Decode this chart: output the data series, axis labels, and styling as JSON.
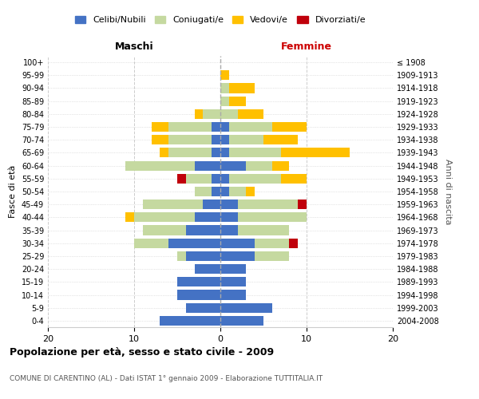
{
  "age_groups": [
    "0-4",
    "5-9",
    "10-14",
    "15-19",
    "20-24",
    "25-29",
    "30-34",
    "35-39",
    "40-44",
    "45-49",
    "50-54",
    "55-59",
    "60-64",
    "65-69",
    "70-74",
    "75-79",
    "80-84",
    "85-89",
    "90-94",
    "95-99",
    "100+"
  ],
  "birth_years": [
    "2004-2008",
    "1999-2003",
    "1994-1998",
    "1989-1993",
    "1984-1988",
    "1979-1983",
    "1974-1978",
    "1969-1973",
    "1964-1968",
    "1959-1963",
    "1954-1958",
    "1949-1953",
    "1944-1948",
    "1939-1943",
    "1934-1938",
    "1929-1933",
    "1924-1928",
    "1919-1923",
    "1914-1918",
    "1909-1913",
    "≤ 1908"
  ],
  "maschi": {
    "celibi": [
      7,
      4,
      5,
      5,
      3,
      4,
      6,
      4,
      3,
      2,
      1,
      1,
      3,
      1,
      1,
      1,
      0,
      0,
      0,
      0,
      0
    ],
    "coniugati": [
      0,
      0,
      0,
      0,
      0,
      1,
      4,
      5,
      7,
      7,
      2,
      3,
      8,
      5,
      5,
      5,
      2,
      0,
      0,
      0,
      0
    ],
    "vedovi": [
      0,
      0,
      0,
      0,
      0,
      0,
      0,
      0,
      1,
      0,
      0,
      0,
      0,
      1,
      2,
      2,
      1,
      0,
      0,
      0,
      0
    ],
    "divorziati": [
      0,
      0,
      0,
      0,
      0,
      0,
      0,
      0,
      0,
      0,
      0,
      1,
      0,
      0,
      0,
      0,
      0,
      0,
      0,
      0,
      0
    ]
  },
  "femmine": {
    "nubili": [
      5,
      6,
      3,
      3,
      3,
      4,
      4,
      2,
      2,
      2,
      1,
      1,
      3,
      1,
      1,
      1,
      0,
      0,
      0,
      0,
      0
    ],
    "coniugate": [
      0,
      0,
      0,
      0,
      0,
      4,
      4,
      6,
      8,
      7,
      2,
      6,
      3,
      6,
      4,
      5,
      2,
      1,
      1,
      0,
      0
    ],
    "vedove": [
      0,
      0,
      0,
      0,
      0,
      0,
      0,
      0,
      0,
      0,
      1,
      3,
      2,
      8,
      4,
      4,
      3,
      2,
      3,
      1,
      0
    ],
    "divorziate": [
      0,
      0,
      0,
      0,
      0,
      0,
      1,
      0,
      0,
      1,
      0,
      0,
      0,
      0,
      0,
      0,
      0,
      0,
      0,
      0,
      0
    ]
  },
  "colors": {
    "celibi": "#4472c4",
    "coniugati": "#c5d9a0",
    "vedovi": "#ffc000",
    "divorziati": "#c0000b"
  },
  "title": "Popolazione per età, sesso e stato civile - 2009",
  "subtitle": "COMUNE DI CARENTINO (AL) - Dati ISTAT 1° gennaio 2009 - Elaborazione TUTTITALIA.IT",
  "xlabel_left": "Maschi",
  "xlabel_right": "Femmine",
  "ylabel_left": "Fasce di età",
  "ylabel_right": "Anni di nascita",
  "xlim": 20,
  "background_color": "#ffffff",
  "grid_color": "#cccccc",
  "legend_labels": [
    "Celibi/Nubili",
    "Coniugati/e",
    "Vedovi/e",
    "Divorziati/e"
  ]
}
